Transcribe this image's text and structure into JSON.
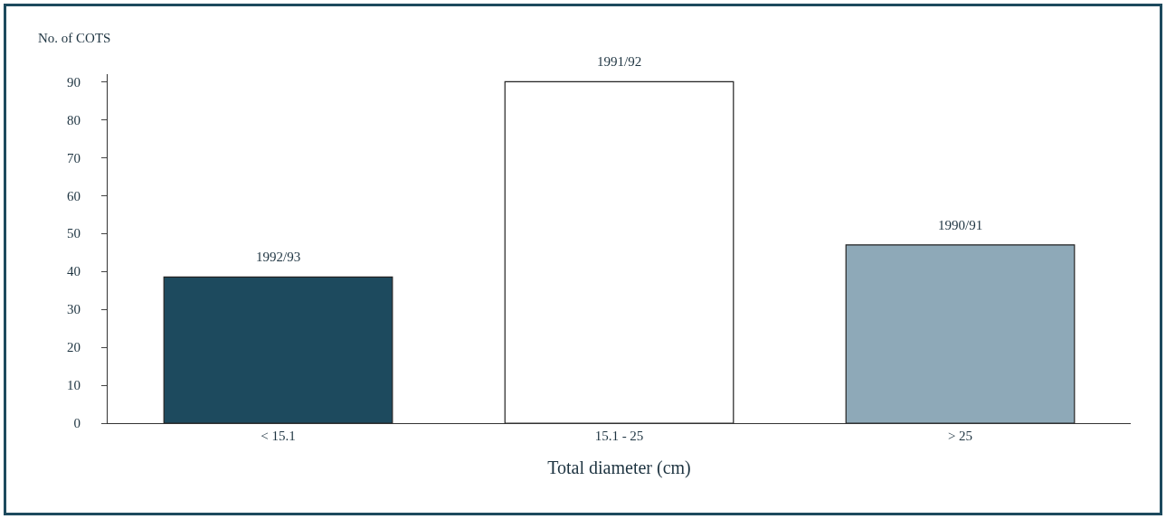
{
  "chart_data": {
    "type": "bar",
    "ylabel": "No. of COTS",
    "xlabel": "Total diameter (cm)",
    "categories": [
      "< 15.1",
      "15.1 - 25",
      "> 25"
    ],
    "values": [
      38.5,
      90,
      47
    ],
    "colors": [
      "#1d4a5e",
      "#ffffff",
      "#8ea9b8"
    ],
    "ylim": [
      0,
      92
    ],
    "yticks": [
      0,
      10,
      20,
      30,
      40,
      50,
      60,
      70,
      80,
      90
    ],
    "grid": false,
    "legend": false,
    "annotations": [
      {
        "text": "1992/93",
        "x": "< 15.1",
        "y": 38.5
      },
      {
        "text": "1991/92",
        "x": "15.1 - 25",
        "y": 90
      },
      {
        "text": "1990/91",
        "x": "> 25",
        "y": 47
      }
    ]
  }
}
